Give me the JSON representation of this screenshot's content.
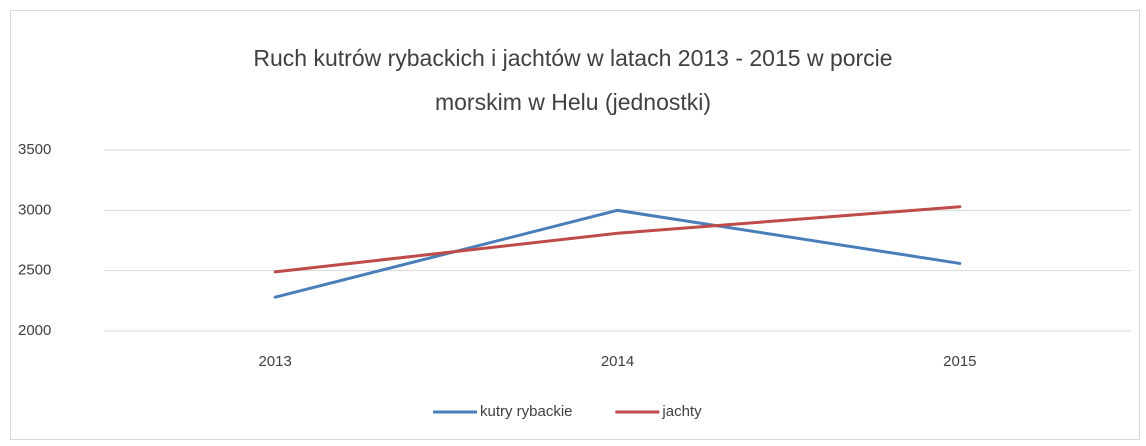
{
  "chart_data": {
    "type": "line",
    "title": "Ruch kutrów rybackich i jachtów w latach 2013 - 2015 w porcie morskim w Helu (jednostki)",
    "categories": [
      "2013",
      "2014",
      "2015"
    ],
    "series": [
      {
        "name": "kutry rybackie",
        "color": "#4a7ebb",
        "values": [
          2280,
          3000,
          2560
        ]
      },
      {
        "name": "jachty",
        "color": "#be4b48",
        "values": [
          2490,
          2810,
          3030
        ]
      }
    ],
    "ylim": [
      2000,
      3500
    ],
    "yticks": [
      2000,
      2500,
      3000,
      3500
    ],
    "grid": true,
    "legend": "bottom"
  }
}
